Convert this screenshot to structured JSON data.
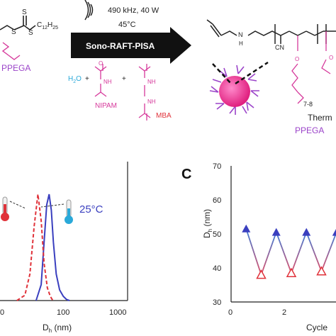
{
  "scheme": {
    "conditions": "490 kHz, 40 W",
    "temperature": "45°C",
    "arrow_label": "Sono-RAFT-PISA",
    "raft_tail": "C",
    "raft_tail_sub": "12",
    "raft_tail_mid": "H",
    "raft_tail_sub2": "25",
    "ppega_left": "PPEGA",
    "water": "H",
    "water_sub": "2",
    "water_end": "O",
    "plus": "+",
    "nipam": "NIPAM",
    "mba": "MBA",
    "nh": "N",
    "h_label": "H",
    "o_label": "O",
    "cn_label": "CN",
    "repeat_label": "7-8",
    "thermo_label": "Therm",
    "ppega_right": "PPEGA"
  },
  "panel_b": {
    "temp_label": "25°C",
    "xlabel_main": "D",
    "xlabel_sub": "h",
    "xlabel_unit": " (nm)",
    "xticks": [
      "0",
      "100",
      "1000"
    ]
  },
  "panel_c": {
    "panel_letter": "C",
    "ylabel_main": "D",
    "ylabel_sub": "h",
    "ylabel_unit": " (nm)",
    "yticks": [
      "30",
      "40",
      "50",
      "60",
      "70"
    ],
    "xticks": [
      "0",
      "2"
    ],
    "xlabel": "Cycle"
  },
  "colors": {
    "magenta": "#d6399b",
    "purple": "#9b44c9",
    "red": "#e0323a",
    "blue": "#3a3fbf",
    "cyan": "#2aa9d9"
  },
  "chart_data": [
    {
      "type": "line",
      "xlabel": "Dh (nm)",
      "x_scale": "log",
      "xlim": [
        10,
        1000
      ],
      "xticks": [
        "0",
        "100",
        "1000"
      ],
      "legend": [
        "25°C"
      ],
      "series": [
        {
          "name": "25°C",
          "style": "solid",
          "color": "#3a3fbf",
          "x": [
            30,
            36,
            40,
            44,
            48,
            52,
            56,
            62,
            70,
            80,
            90,
            100
          ],
          "y": [
            0,
            15,
            55,
            90,
            100,
            85,
            55,
            25,
            10,
            4,
            1,
            0
          ]
        },
        {
          "style": "dashed",
          "color": "#e0323a",
          "x": [
            15,
            20,
            24,
            28,
            32,
            36,
            40,
            45,
            50,
            55
          ],
          "y": [
            0,
            5,
            25,
            70,
            100,
            75,
            35,
            12,
            4,
            0
          ]
        }
      ]
    },
    {
      "type": "scatter",
      "ylabel": "Dh (nm)",
      "xlabel": "Cycle",
      "ylim": [
        30,
        70
      ],
      "xlim": [
        0,
        4
      ],
      "yticks": [
        30,
        40,
        50,
        60,
        70
      ],
      "series": [
        {
          "marker": "filled-triangle",
          "color": "#3a3fbf",
          "x": [
            0.5,
            1.5,
            2.5,
            3.5
          ],
          "y": [
            51.5,
            50.5,
            50.5,
            50.5
          ]
        },
        {
          "marker": "open-triangle",
          "color": "#e0323a",
          "x": [
            1.0,
            2.0,
            3.0
          ],
          "y": [
            38.0,
            38.5,
            39.0
          ]
        }
      ]
    }
  ]
}
